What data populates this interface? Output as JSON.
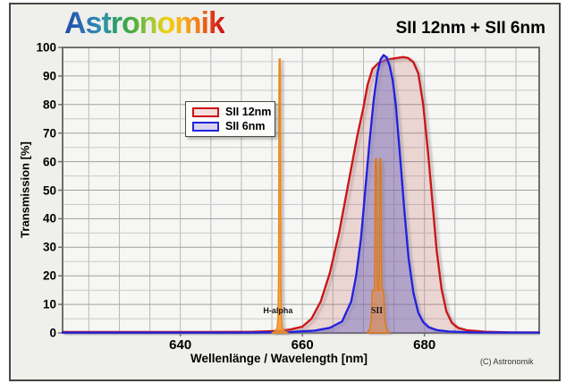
{
  "header": {
    "logo_text": "Astronomik",
    "title": "SII 12nm + SII 6nm"
  },
  "legend": {
    "items": [
      {
        "label": "SII 12nm",
        "stroke": "#cc1414",
        "fill": "#f5dfe0"
      },
      {
        "label": "SII 6nm",
        "stroke": "#2323dd",
        "fill": "#d9d4f0"
      }
    ]
  },
  "x_axis": {
    "title": "Wellenlänge / Wavelength [nm]",
    "tick_labels": [
      640,
      660,
      680
    ]
  },
  "y_axis": {
    "title": "Transmission [%]",
    "tick_labels": [
      100,
      90,
      80,
      70,
      60,
      50,
      40,
      30,
      20,
      10,
      0
    ]
  },
  "footer": {
    "copyright": "(C) Astronomik"
  },
  "colors": {
    "page_bg": "#ffffff",
    "chart_bg": "#efefec",
    "plot_bg": "#f6f6f4",
    "grid_minor": "#cacaca",
    "grid_major": "#a0a0a0",
    "grid_vertical": "#b8b8b8",
    "frame": "#6f6f6f",
    "red_series": "#cc1414",
    "blue_series": "#2323dd",
    "emission_orange": "#ee8812"
  },
  "chart_data": {
    "type": "line",
    "title": "SII 12nm + SII 6nm",
    "xlabel": "Wellenlänge / Wavelength [nm]",
    "ylabel": "Transmission [%]",
    "xlim": [
      620.7,
      698.8
    ],
    "ylim": [
      0,
      100
    ],
    "x_grid_step": 5,
    "y_grid_step": 5,
    "x_major_ticks": [
      640,
      660,
      680
    ],
    "y_major_ticks": [
      0,
      10,
      20,
      30,
      40,
      50,
      60,
      70,
      80,
      90,
      100
    ],
    "grid": true,
    "legend_position": "upper-left-inside",
    "series": [
      {
        "name": "SII 12nm",
        "center_nm": 673.5,
        "fwhm_nm": 12,
        "peak_transmission_pct": 96.6,
        "color": "#cc1414",
        "fill": "rgba(204,30,40,0.14)",
        "points": [
          [
            620.7,
            0.3
          ],
          [
            645,
            0.3
          ],
          [
            652,
            0.4
          ],
          [
            656,
            0.7
          ],
          [
            658,
            1.2
          ],
          [
            660,
            2.2
          ],
          [
            661.5,
            5
          ],
          [
            663,
            11
          ],
          [
            664.5,
            21
          ],
          [
            666,
            35
          ],
          [
            667.5,
            52
          ],
          [
            669,
            69
          ],
          [
            670,
            79
          ],
          [
            670.7,
            87
          ],
          [
            671.5,
            92.5
          ],
          [
            672.5,
            94.6
          ],
          [
            674,
            95.8
          ],
          [
            675.5,
            96.3
          ],
          [
            676.5,
            96.6
          ],
          [
            677.3,
            96.3
          ],
          [
            678.2,
            94.8
          ],
          [
            679,
            90.8
          ],
          [
            679.8,
            80
          ],
          [
            680.6,
            63
          ],
          [
            681.3,
            46
          ],
          [
            682,
            29
          ],
          [
            682.8,
            15.5
          ],
          [
            683.6,
            7.5
          ],
          [
            684.5,
            3.5
          ],
          [
            685.5,
            1.8
          ],
          [
            687,
            0.9
          ],
          [
            690,
            0.4
          ],
          [
            694,
            0.2
          ],
          [
            698.8,
            0.15
          ]
        ]
      },
      {
        "name": "SII 6nm",
        "center_nm": 673.0,
        "fwhm_nm": 6,
        "peak_transmission_pct": 97.3,
        "color": "#2323dd",
        "fill": "rgba(105,92,205,0.34)",
        "points": [
          [
            620.7,
            0.1
          ],
          [
            650,
            0.1
          ],
          [
            658,
            0.3
          ],
          [
            662,
            0.8
          ],
          [
            664.5,
            1.8
          ],
          [
            666.5,
            4
          ],
          [
            668,
            11
          ],
          [
            668.8,
            20
          ],
          [
            669.6,
            33
          ],
          [
            670.3,
            50
          ],
          [
            671,
            67
          ],
          [
            671.7,
            82
          ],
          [
            672.3,
            91
          ],
          [
            672.8,
            95.8
          ],
          [
            673.3,
            97.3
          ],
          [
            673.8,
            96.5
          ],
          [
            674.3,
            93.5
          ],
          [
            674.8,
            88.5
          ],
          [
            675.3,
            80
          ],
          [
            676,
            62
          ],
          [
            676.7,
            43
          ],
          [
            677.4,
            26
          ],
          [
            678.2,
            14
          ],
          [
            679,
            7
          ],
          [
            679.8,
            3.8
          ],
          [
            680.7,
            2
          ],
          [
            682,
            1
          ],
          [
            684,
            0.5
          ],
          [
            688,
            0.2
          ],
          [
            698.8,
            0.1
          ]
        ]
      }
    ],
    "emission_lines": [
      {
        "name": "H-alpha",
        "label": "H-alpha",
        "label_nm": 656.0,
        "peak_pct": 96,
        "color": "#ee8812",
        "fill": "rgba(248,150,40,0.8)",
        "points": [
          [
            655.0,
            0
          ],
          [
            655.5,
            0.5
          ],
          [
            655.85,
            1.8
          ],
          [
            656.0,
            5
          ],
          [
            656.1,
            20
          ],
          [
            656.17,
            93
          ],
          [
            656.22,
            96
          ],
          [
            656.33,
            96
          ],
          [
            656.38,
            93
          ],
          [
            656.45,
            20
          ],
          [
            656.55,
            5
          ],
          [
            656.7,
            1.8
          ],
          [
            657.05,
            0.5
          ],
          [
            657.6,
            0
          ]
        ]
      },
      {
        "name": "SII",
        "label": "SII",
        "label_nm": 672.2,
        "peak_pct": 61,
        "color": "#e07818",
        "fill": "rgba(240,140,30,0.5)",
        "points": [
          [
            670.6,
            0
          ],
          [
            671.0,
            1.2
          ],
          [
            671.3,
            4.5
          ],
          [
            671.45,
            14
          ],
          [
            671.55,
            15
          ],
          [
            671.82,
            15
          ],
          [
            671.88,
            35
          ],
          [
            671.93,
            60
          ],
          [
            671.98,
            61
          ],
          [
            672.1,
            61
          ],
          [
            672.16,
            57
          ],
          [
            672.22,
            20
          ],
          [
            672.28,
            15
          ],
          [
            672.52,
            15
          ],
          [
            672.58,
            20
          ],
          [
            672.64,
            57
          ],
          [
            672.7,
            61
          ],
          [
            672.82,
            61
          ],
          [
            672.88,
            58
          ],
          [
            672.95,
            25
          ],
          [
            673.02,
            15
          ],
          [
            673.25,
            15
          ],
          [
            673.35,
            13
          ],
          [
            673.5,
            4.5
          ],
          [
            673.8,
            1.2
          ],
          [
            674.2,
            0
          ]
        ]
      }
    ]
  }
}
